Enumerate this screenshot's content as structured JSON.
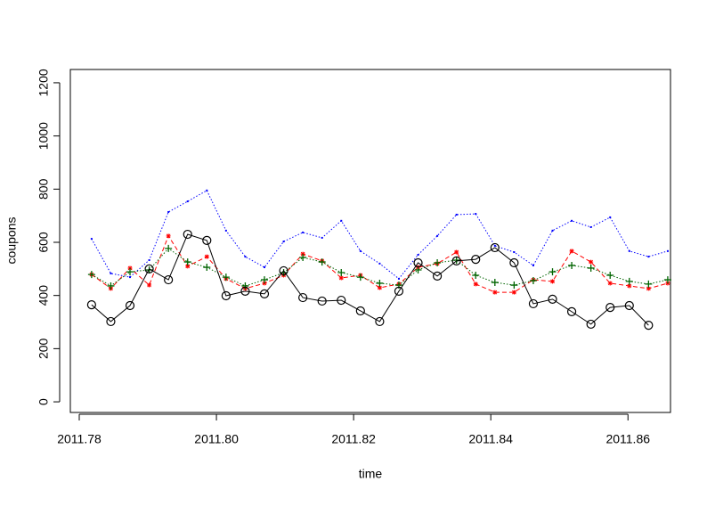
{
  "chart_data": {
    "type": "line",
    "xlabel": "time",
    "ylabel": "coupons",
    "x": [
      2011.7818,
      2011.7846,
      2011.7874,
      2011.7902,
      2011.793,
      2011.7958,
      2011.7986,
      2011.8014,
      2011.8042,
      2011.807,
      2011.8098,
      2011.8126,
      2011.8154,
      2011.8182,
      2011.821,
      2011.8238,
      2011.8266,
      2011.8294,
      2011.8322,
      2011.835,
      2011.8378,
      2011.8406,
      2011.8434,
      2011.8462,
      2011.849,
      2011.8518,
      2011.8546,
      2011.8574,
      2011.8602,
      2011.863,
      2011.8658
    ],
    "xlim": [
      2011.7787,
      2011.8662
    ],
    "xticks": [
      2011.78,
      {
        "value": 2011.8,
        "label": "2011.80"
      },
      2011.82,
      2011.84,
      2011.86
    ],
    "ylim": [
      -40,
      1250
    ],
    "yticks": [
      0,
      200,
      400,
      600,
      800,
      1000,
      1200
    ],
    "series": [
      {
        "color": "#0000ff",
        "dash": "dotted",
        "marker": "dot",
        "values": [
          613,
          483,
          469,
          533,
          714,
          754,
          795,
          644,
          546,
          506,
          603,
          637,
          617,
          681,
          567,
          520,
          463,
          553,
          624,
          704,
          707,
          587,
          563,
          513,
          644,
          681,
          657,
          694,
          567,
          546,
          567
        ]
      },
      {
        "color": "#ff0000",
        "dash": "dashed",
        "marker": "asterisk",
        "values": [
          479,
          426,
          503,
          439,
          624,
          510,
          546,
          463,
          426,
          446,
          476,
          556,
          530,
          466,
          476,
          429,
          443,
          506,
          520,
          563,
          443,
          412,
          412,
          459,
          453,
          567,
          526,
          446,
          436,
          426,
          446
        ]
      },
      {
        "color": "#006400",
        "dash": "dotted",
        "marker": "plus",
        "values": [
          479,
          436,
          489,
          496,
          577,
          526,
          506,
          469,
          436,
          459,
          486,
          543,
          526,
          486,
          469,
          446,
          439,
          496,
          523,
          533,
          476,
          449,
          439,
          456,
          489,
          513,
          503,
          476,
          453,
          443,
          459
        ]
      },
      {
        "color": "#000000",
        "dash": "solid",
        "marker": "circle",
        "values": [
          365,
          302,
          362,
          500,
          459,
          630,
          607,
          399,
          416,
          406,
          493,
          392,
          379,
          382,
          342,
          302,
          416,
          523,
          473,
          530,
          536,
          580,
          523,
          369,
          386,
          339,
          292,
          355,
          362,
          288,
          null
        ]
      }
    ]
  }
}
